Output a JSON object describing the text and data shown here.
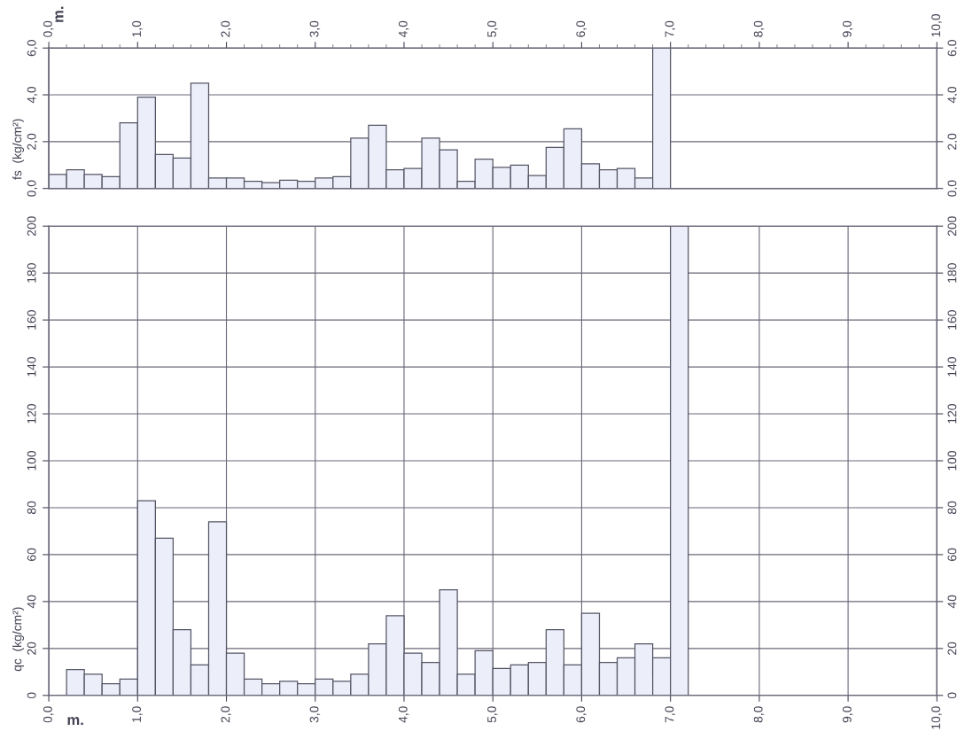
{
  "chart_data": [
    {
      "type": "histogram",
      "ylabel": "fs  (kg/cm²)",
      "x2label": "m.",
      "color": "#eceffa",
      "bins": [
        0.0,
        0.2,
        0.4,
        0.6,
        0.8,
        1.0,
        1.2,
        1.4,
        1.6,
        1.8,
        2.0,
        2.2,
        2.4,
        2.6,
        2.8,
        3.0,
        3.2,
        3.4,
        3.6,
        3.8,
        4.0,
        4.2,
        4.4,
        4.6,
        4.8,
        5.0,
        5.2,
        5.4,
        5.6,
        5.8,
        6.0,
        6.2,
        6.4,
        6.6,
        6.8,
        7.0
      ],
      "values": [
        0.6,
        0.8,
        0.6,
        0.5,
        2.8,
        3.9,
        1.45,
        1.3,
        4.5,
        0.45,
        0.45,
        0.3,
        0.25,
        0.35,
        0.3,
        0.45,
        0.5,
        2.15,
        2.7,
        0.8,
        0.85,
        2.15,
        1.65,
        0.3,
        1.25,
        0.9,
        1.0,
        0.55,
        1.75,
        2.55,
        1.05,
        0.8,
        0.85,
        0.45,
        6.0
      ],
      "xlim": [
        0,
        10
      ],
      "x2lim": [
        0,
        10
      ],
      "x2ticks": [
        {
          "value": 0,
          "label": "0,0"
        },
        {
          "value": 1,
          "label": "1,0"
        },
        {
          "value": 2,
          "label": "2,0"
        },
        {
          "value": 3,
          "label": "3,0"
        },
        {
          "value": 4,
          "label": "4,0"
        },
        {
          "value": 5,
          "label": "5,0"
        },
        {
          "value": 6,
          "label": "6,0"
        },
        {
          "value": 7,
          "label": "7,0"
        },
        {
          "value": 8,
          "label": "8,0"
        },
        {
          "value": 9,
          "label": "9,0"
        },
        {
          "value": 10,
          "label": "10,0"
        }
      ],
      "ylim": [
        0,
        6
      ],
      "yticks": [
        {
          "value": 0,
          "label": "0,0"
        },
        {
          "value": 2,
          "label": "2,0"
        },
        {
          "value": 4,
          "label": "4,0"
        },
        {
          "value": 6,
          "label": "6,0"
        }
      ],
      "y2lim": [
        0,
        6
      ],
      "y2ticks": [
        {
          "value": 0,
          "label": "0,0"
        },
        {
          "value": 2,
          "label": "2,0"
        },
        {
          "value": 4,
          "label": "4,0"
        },
        {
          "value": 6,
          "label": "6,0"
        }
      ],
      "tick_labels": "y",
      "grid": true,
      "legend": false
    },
    {
      "type": "histogram",
      "ylabel": "qc  (kg/cm²)",
      "xlabel": "m.",
      "color": "#eceffa",
      "bins": [
        0.2,
        0.4,
        0.6,
        0.8,
        1.0,
        1.2,
        1.4,
        1.6,
        1.8,
        2.0,
        2.2,
        2.4,
        2.6,
        2.8,
        3.0,
        3.2,
        3.4,
        3.6,
        3.8,
        4.0,
        4.2,
        4.4,
        4.6,
        4.8,
        5.0,
        5.2,
        5.4,
        5.6,
        5.8,
        6.0,
        6.2,
        6.4,
        6.6,
        6.8,
        7.0,
        7.2
      ],
      "values": [
        11,
        9,
        5,
        7,
        83,
        67,
        28,
        13,
        74,
        18,
        7,
        5,
        6,
        5,
        7,
        6,
        9,
        22,
        34,
        18,
        14,
        45,
        9,
        19,
        11.5,
        13,
        14,
        28,
        13,
        35,
        14,
        16,
        22,
        16,
        200
      ],
      "xlim": [
        0,
        10
      ],
      "xticks": [
        {
          "value": 0,
          "label": "0,0"
        },
        {
          "value": 1,
          "label": "1,0"
        },
        {
          "value": 2,
          "label": "2,0"
        },
        {
          "value": 3,
          "label": "3,0"
        },
        {
          "value": 4,
          "label": "4,0"
        },
        {
          "value": 5,
          "label": "5,0"
        },
        {
          "value": 6,
          "label": "6,0"
        },
        {
          "value": 7,
          "label": "7,0"
        },
        {
          "value": 8,
          "label": "8,0"
        },
        {
          "value": 9,
          "label": "9,0"
        },
        {
          "value": 10,
          "label": "10,0"
        }
      ],
      "ylim": [
        0,
        200
      ],
      "yticks": [
        0,
        20,
        40,
        60,
        80,
        100,
        120,
        140,
        160,
        180,
        200
      ],
      "y2lim": [
        0,
        200
      ],
      "y2ticks": [
        0,
        20,
        40,
        60,
        80,
        100,
        120,
        140,
        160,
        180,
        200
      ],
      "grid": true,
      "legend": false
    }
  ]
}
